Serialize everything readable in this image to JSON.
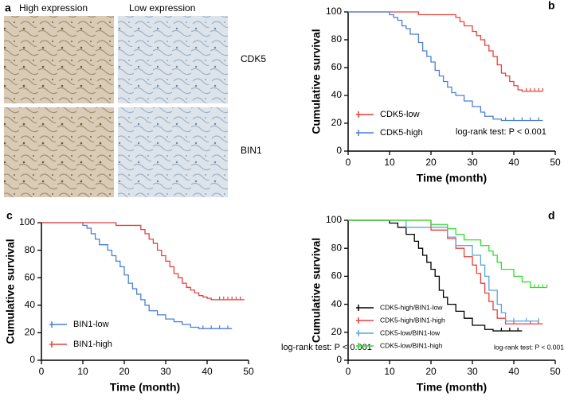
{
  "panel_a": {
    "letter": "a",
    "columns": [
      "High expression",
      "Low expression"
    ],
    "rows": [
      "CDK5",
      "BIN1"
    ]
  },
  "chart_data": [
    {
      "type": "step",
      "panel": "b",
      "xlabel": "Time (month)",
      "ylabel": "Cumulative survival",
      "xlim": [
        0,
        50
      ],
      "ylim": [
        0,
        100
      ],
      "xticks": [
        0,
        10,
        20,
        30,
        40,
        50
      ],
      "yticks": [
        0,
        20,
        40,
        60,
        80,
        100
      ],
      "annotation": "log-rank test: P < 0.001",
      "legend": "lower left",
      "series": [
        {
          "name": "CDK5-low",
          "color": "#e8413c",
          "x": [
            0,
            17,
            26,
            27,
            28,
            30,
            31,
            32,
            33,
            34,
            35,
            36,
            37,
            38,
            39,
            40,
            41,
            42,
            47
          ],
          "values": [
            100,
            98,
            96,
            93,
            90,
            86,
            83,
            80,
            76,
            72,
            68,
            62,
            56,
            54,
            50,
            47,
            44,
            43,
            43
          ],
          "censored": [
            43,
            44,
            45,
            46,
            47
          ]
        },
        {
          "name": "CDK5-high",
          "color": "#4a7fd4",
          "x": [
            0,
            10,
            11,
            12,
            13,
            14,
            15,
            17,
            18,
            19,
            20,
            21,
            22,
            23,
            24,
            25,
            26,
            28,
            30,
            32,
            33,
            35,
            37,
            47
          ],
          "values": [
            100,
            98,
            96,
            94,
            90,
            88,
            84,
            78,
            72,
            68,
            64,
            58,
            54,
            50,
            46,
            42,
            40,
            36,
            32,
            28,
            25,
            23,
            22,
            22
          ],
          "censored": [
            38,
            40,
            42,
            44,
            46
          ]
        }
      ]
    },
    {
      "type": "step",
      "panel": "c",
      "xlabel": "Time (month)",
      "ylabel": "Cumulative survival",
      "xlim": [
        0,
        50
      ],
      "ylim": [
        0,
        100
      ],
      "xticks": [
        0,
        10,
        20,
        30,
        40,
        50
      ],
      "yticks": [
        0,
        20,
        40,
        60,
        80,
        100
      ],
      "annotation": "log-rank test: P < 0.001",
      "legend": "lower left",
      "series": [
        {
          "name": "BIN1-low",
          "color": "#4a7fd4",
          "x": [
            0,
            10,
            11,
            12,
            13,
            14,
            16,
            17,
            18,
            19,
            20,
            21,
            22,
            23,
            24,
            25,
            26,
            28,
            30,
            32,
            34,
            36,
            38,
            46
          ],
          "values": [
            100,
            98,
            96,
            92,
            88,
            84,
            80,
            76,
            72,
            68,
            62,
            56,
            52,
            48,
            44,
            40,
            36,
            33,
            30,
            28,
            26,
            24,
            23,
            23
          ],
          "censored": [
            39,
            41,
            43,
            45
          ]
        },
        {
          "name": "BIN1-high",
          "color": "#e8413c",
          "x": [
            0,
            18,
            24,
            25,
            26,
            27,
            28,
            29,
            30,
            31,
            32,
            33,
            34,
            35,
            36,
            37,
            38,
            39,
            40,
            41,
            42,
            49
          ],
          "values": [
            100,
            98,
            95,
            92,
            88,
            85,
            80,
            76,
            72,
            68,
            63,
            60,
            56,
            53,
            51,
            49,
            47,
            46,
            45,
            44,
            44,
            44
          ],
          "censored": [
            43,
            44,
            45,
            46,
            47,
            48
          ]
        }
      ]
    },
    {
      "type": "step",
      "panel": "d",
      "xlabel": "Time (month)",
      "ylabel": "Cumulative survival",
      "xlim": [
        0,
        50
      ],
      "ylim": [
        0,
        100
      ],
      "xticks": [
        0,
        10,
        20,
        30,
        40,
        50
      ],
      "yticks": [
        0,
        20,
        40,
        60,
        80,
        100
      ],
      "annotation": "log-rank test: P < 0.001",
      "legend": "lower left",
      "series": [
        {
          "name": "CDK5-high/BIN1-low",
          "color": "#000000",
          "x": [
            0,
            10,
            12,
            14,
            16,
            17,
            18,
            19,
            20,
            21,
            22,
            23,
            24,
            26,
            28,
            30,
            33,
            35,
            42
          ],
          "values": [
            100,
            98,
            95,
            90,
            85,
            80,
            75,
            70,
            65,
            60,
            50,
            45,
            40,
            35,
            30,
            25,
            22,
            21,
            21
          ],
          "censored": [
            37,
            39,
            41
          ]
        },
        {
          "name": "CDK5-high/BIN1-high",
          "color": "#e8413c",
          "x": [
            0,
            16,
            20,
            24,
            26,
            28,
            30,
            31,
            32,
            33,
            34,
            35,
            36,
            38,
            47
          ],
          "values": [
            100,
            100,
            93,
            87,
            80,
            74,
            68,
            62,
            55,
            48,
            42,
            36,
            30,
            26,
            26
          ],
          "censored": [
            40,
            44,
            46
          ]
        },
        {
          "name": "CDK5-low/BIN1-low",
          "color": "#5aa4e0",
          "x": [
            0,
            12,
            14,
            22,
            24,
            26,
            30,
            32,
            33,
            34,
            36,
            37,
            38,
            46
          ],
          "values": [
            100,
            100,
            95,
            95,
            88,
            82,
            75,
            68,
            60,
            50,
            40,
            34,
            28,
            28
          ],
          "censored": [
            40,
            43,
            46
          ]
        },
        {
          "name": "CDK5-low/BIN1-high",
          "color": "#2ee02e",
          "x": [
            0,
            19,
            20,
            24,
            26,
            28,
            32,
            34,
            35,
            36,
            37,
            40,
            42,
            44,
            48
          ],
          "values": [
            100,
            100,
            97,
            94,
            90,
            86,
            82,
            78,
            75,
            70,
            65,
            60,
            56,
            52,
            52
          ],
          "censored": [
            44,
            45,
            46,
            47,
            48
          ]
        }
      ]
    }
  ]
}
